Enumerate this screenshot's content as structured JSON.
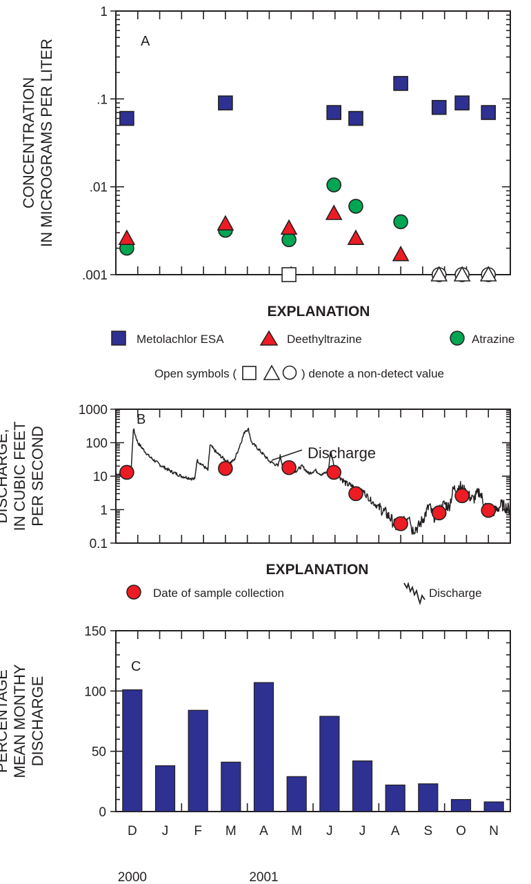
{
  "chart_data": [
    {
      "type": "scatter",
      "panel": "A",
      "ylabel_lines": [
        "CONCENTRATION",
        "IN MICROGRAMS PER LITER"
      ],
      "yscale": "log",
      "ylim": [
        0.001,
        1
      ],
      "ytick_labels": [
        ".001",
        ".01",
        ".1",
        "1"
      ],
      "grid": false,
      "series": [
        {
          "name": "Metolachlor ESA",
          "marker": "square",
          "color": "#2e3192",
          "points": [
            {
              "x": 0.5,
              "y": 0.06
            },
            {
              "x": 5.0,
              "y": 0.09
            },
            {
              "x": 7.9,
              "y": 0.001,
              "nondetect": true
            },
            {
              "x": 9.95,
              "y": 0.07
            },
            {
              "x": 10.95,
              "y": 0.06
            },
            {
              "x": 13.0,
              "y": 0.15
            },
            {
              "x": 14.75,
              "y": 0.08
            },
            {
              "x": 15.8,
              "y": 0.09
            },
            {
              "x": 17.0,
              "y": 0.07
            }
          ]
        },
        {
          "name": "Deethyltrazine",
          "marker": "triangle",
          "color": "#ed1c24",
          "points": [
            {
              "x": 0.5,
              "y": 0.0026
            },
            {
              "x": 5.0,
              "y": 0.0038
            },
            {
              "x": 7.9,
              "y": 0.0034
            },
            {
              "x": 9.95,
              "y": 0.005
            },
            {
              "x": 10.95,
              "y": 0.0026
            },
            {
              "x": 13.0,
              "y": 0.0017
            },
            {
              "x": 14.75,
              "y": 0.001,
              "nondetect": true
            },
            {
              "x": 15.8,
              "y": 0.001,
              "nondetect": true
            },
            {
              "x": 17.0,
              "y": 0.001,
              "nondetect": true
            }
          ]
        },
        {
          "name": "Atrazine",
          "marker": "circle",
          "color": "#00a651",
          "points": [
            {
              "x": 0.5,
              "y": 0.002
            },
            {
              "x": 5.0,
              "y": 0.0032
            },
            {
              "x": 7.9,
              "y": 0.0025
            },
            {
              "x": 9.95,
              "y": 0.0105
            },
            {
              "x": 10.95,
              "y": 0.006
            },
            {
              "x": 13.0,
              "y": 0.004
            },
            {
              "x": 14.75,
              "y": 0.001,
              "nondetect": true
            },
            {
              "x": 15.8,
              "y": 0.001,
              "nondetect": true
            },
            {
              "x": 17.0,
              "y": 0.001,
              "nondetect": true
            }
          ]
        }
      ]
    },
    {
      "type": "line",
      "panel": "B",
      "ylabel_lines": [
        "DISCHARGE,",
        "IN CUBIC FEET",
        "PER SECOND"
      ],
      "yscale": "log",
      "ylim": [
        0.1,
        1000
      ],
      "ytick_labels": [
        "0.1",
        "1",
        "10",
        "100",
        "1000"
      ],
      "grid": false,
      "annotation": "Discharge",
      "discharge": [
        [
          0,
          12
        ],
        [
          0.5,
          10
        ],
        [
          0.7,
          15
        ],
        [
          0.8,
          260
        ],
        [
          1.0,
          100
        ],
        [
          1.5,
          40
        ],
        [
          2.0,
          22
        ],
        [
          2.5,
          14
        ],
        [
          3.0,
          10
        ],
        [
          3.3,
          9
        ],
        [
          3.6,
          8
        ],
        [
          3.7,
          30
        ],
        [
          4.0,
          20
        ],
        [
          4.2,
          15
        ],
        [
          4.3,
          85
        ],
        [
          4.6,
          50
        ],
        [
          5.0,
          30
        ],
        [
          5.2,
          25
        ],
        [
          5.4,
          30
        ],
        [
          5.6,
          65
        ],
        [
          5.9,
          230
        ],
        [
          6.05,
          250
        ],
        [
          6.2,
          100
        ],
        [
          6.45,
          70
        ],
        [
          6.8,
          40
        ],
        [
          7.0,
          28
        ],
        [
          7.2,
          24
        ],
        [
          7.4,
          20
        ],
        [
          7.5,
          40
        ],
        [
          7.6,
          22
        ],
        [
          7.9,
          18
        ],
        [
          8.2,
          14
        ],
        [
          8.5,
          20
        ],
        [
          8.8,
          12
        ],
        [
          9.1,
          15
        ],
        [
          9.4,
          11
        ],
        [
          9.7,
          14
        ],
        [
          9.8,
          60
        ],
        [
          10.0,
          14
        ],
        [
          10.2,
          10
        ],
        [
          10.5,
          6
        ],
        [
          10.8,
          5
        ],
        [
          11.0,
          3.2
        ],
        [
          11.3,
          3.5
        ],
        [
          11.6,
          2
        ],
        [
          11.8,
          1.5
        ],
        [
          12.0,
          1.2
        ],
        [
          12.3,
          0.8
        ],
        [
          12.5,
          0.6
        ],
        [
          12.8,
          0.3
        ],
        [
          13.0,
          0.35
        ],
        [
          13.2,
          0.45
        ],
        [
          13.4,
          0.8
        ],
        [
          13.5,
          0.25
        ],
        [
          13.8,
          0.3
        ],
        [
          14.0,
          0.5
        ],
        [
          14.3,
          1.3
        ],
        [
          14.5,
          0.6
        ],
        [
          14.8,
          1.0
        ],
        [
          15.0,
          1.5
        ],
        [
          15.2,
          1.2
        ],
        [
          15.4,
          4
        ],
        [
          15.7,
          5
        ],
        [
          16.0,
          3
        ],
        [
          16.3,
          2
        ],
        [
          16.6,
          3.5
        ],
        [
          16.8,
          1.5
        ],
        [
          17.0,
          1.0
        ],
        [
          17.3,
          0.9
        ],
        [
          17.6,
          1.4
        ],
        [
          18.0,
          1.0
        ]
      ],
      "samples": [
        {
          "x": 0.5,
          "y": 13
        },
        {
          "x": 5.0,
          "y": 17
        },
        {
          "x": 7.9,
          "y": 18
        },
        {
          "x": 9.95,
          "y": 13
        },
        {
          "x": 10.95,
          "y": 3
        },
        {
          "x": 13.0,
          "y": 0.38
        },
        {
          "x": 14.75,
          "y": 0.8
        },
        {
          "x": 15.8,
          "y": 2.6
        },
        {
          "x": 17.0,
          "y": 0.95
        }
      ]
    },
    {
      "type": "bar",
      "panel": "C",
      "ylabel_lines": [
        "PERCENTAGE",
        "MEAN MONTHY",
        "DISCHARGE"
      ],
      "ylim": [
        0,
        150
      ],
      "ytick_labels": [
        "0",
        "50",
        "100",
        "150"
      ],
      "categories": [
        "D",
        "J",
        "F",
        "M",
        "A",
        "M",
        "J",
        "J",
        "A",
        "S",
        "O",
        "N"
      ],
      "values": [
        101,
        38,
        84,
        41,
        107,
        29,
        79,
        42,
        22,
        23,
        10,
        8
      ],
      "year_labels": [
        "2000",
        "2001"
      ],
      "bar_color": "#2e3192",
      "grid": false
    }
  ],
  "panels": {
    "a": "A",
    "b": "B",
    "c": "C"
  },
  "explanation_a": {
    "title": "EXPLANATION",
    "items": [
      "Metolachlor ESA",
      "Deethyltrazine",
      "Atrazine"
    ],
    "note_prefix": "Open symbols (",
    "note_suffix": ") denote a non-detect value"
  },
  "explanation_b": {
    "title": "EXPLANATION",
    "items": [
      "Date of sample collection",
      "Discharge"
    ]
  },
  "colors": {
    "blue": "#2e3192",
    "red": "#ed1c24",
    "green": "#00a651",
    "ink": "#231f20"
  }
}
